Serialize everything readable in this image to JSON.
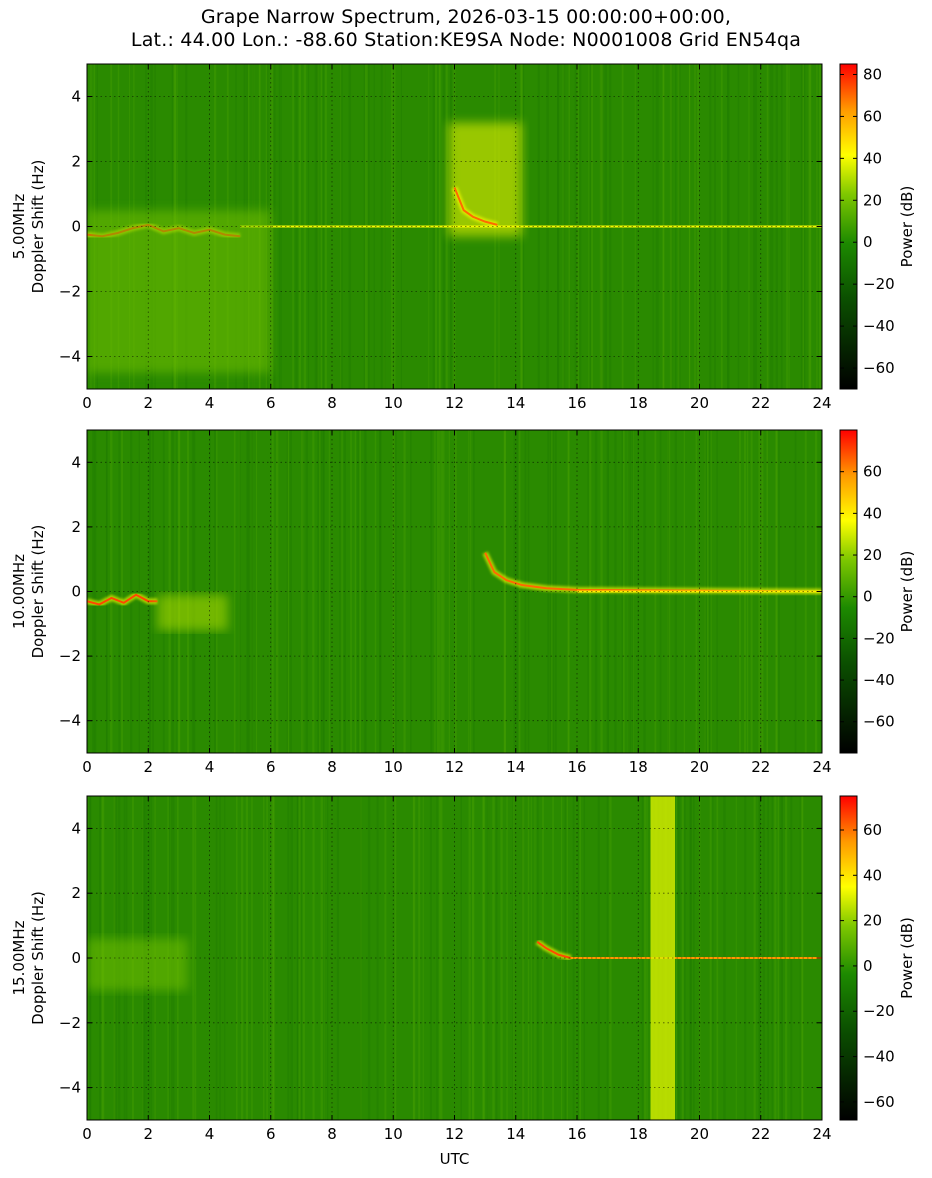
{
  "title": {
    "line1": "Grape Narrow Spectrum, 2026-03-15 00:00:00+00:00,",
    "line2": "Lat.: 44.00 Lon.: -88.60 Station:KE9SA Node: N0001008 Grid EN54qa"
  },
  "chart_data": [
    {
      "type": "heatmap",
      "frequency_label": "5.00MHz",
      "ylabel": "Doppler Shift (Hz)",
      "xlabel": "",
      "xlim": [
        0,
        24
      ],
      "ylim": [
        -5,
        5
      ],
      "x_ticks": [
        0,
        2,
        4,
        6,
        8,
        10,
        12,
        14,
        16,
        18,
        20,
        22,
        24
      ],
      "y_ticks": [
        4,
        2,
        0,
        -2,
        -4
      ],
      "grid": true,
      "colorbar": {
        "label": "Power (dB)",
        "ticks": [
          80,
          60,
          40,
          20,
          0,
          -20,
          -40,
          -60
        ],
        "range": [
          -70,
          85
        ]
      },
      "features": [
        {
          "kind": "carrier",
          "x": [
            0,
            0.5,
            1.0,
            1.5,
            2.0,
            2.5,
            3.0,
            3.5,
            4.0,
            4.5,
            5.0
          ],
          "y": [
            -0.25,
            -0.3,
            -0.2,
            -0.05,
            0.05,
            -0.15,
            -0.05,
            -0.2,
            -0.1,
            -0.25,
            -0.3
          ],
          "power_db": 75
        },
        {
          "kind": "carrier",
          "x": [
            5,
            24
          ],
          "y": [
            0,
            0
          ],
          "power_db": 40
        },
        {
          "kind": "spread",
          "x": [
            0,
            6
          ],
          "y": [
            -4.5,
            0.5
          ],
          "power_db": 20
        },
        {
          "kind": "spread",
          "x": [
            11.8,
            14.2
          ],
          "y": [
            -0.3,
            3.2
          ],
          "power_db": 40
        },
        {
          "kind": "carrier",
          "x": [
            12.0,
            12.3,
            12.6,
            13.0,
            13.4
          ],
          "y": [
            1.2,
            0.5,
            0.3,
            0.15,
            0.05
          ],
          "power_db": 70
        }
      ]
    },
    {
      "type": "heatmap",
      "frequency_label": "10.00MHz",
      "ylabel": "Doppler Shift (Hz)",
      "xlabel": "",
      "xlim": [
        0,
        24
      ],
      "ylim": [
        -5,
        5
      ],
      "x_ticks": [
        0,
        2,
        4,
        6,
        8,
        10,
        12,
        14,
        16,
        18,
        20,
        22,
        24
      ],
      "y_ticks": [
        4,
        2,
        0,
        -2,
        -4
      ],
      "grid": true,
      "colorbar": {
        "label": "Power (dB)",
        "ticks": [
          60,
          40,
          20,
          0,
          -20,
          -40,
          -60
        ],
        "range": [
          -75,
          80
        ]
      },
      "features": [
        {
          "kind": "carrier",
          "x": [
            0,
            0.4,
            0.8,
            1.2,
            1.6,
            2.0,
            2.3
          ],
          "y": [
            -0.3,
            -0.4,
            -0.2,
            -0.35,
            -0.1,
            -0.3,
            -0.3
          ],
          "power_db": 70
        },
        {
          "kind": "spread",
          "x": [
            2.3,
            4.6
          ],
          "y": [
            -1.2,
            -0.1
          ],
          "power_db": 25
        },
        {
          "kind": "carrier",
          "x": [
            13.0,
            13.3,
            13.7,
            14.2,
            15.0,
            16.0,
            24.0
          ],
          "y": [
            1.2,
            0.6,
            0.35,
            0.2,
            0.1,
            0.05,
            0.0
          ],
          "power_db": 65
        },
        {
          "kind": "carrier",
          "x": [
            16,
            24
          ],
          "y": [
            0,
            0
          ],
          "power_db": 40
        }
      ]
    },
    {
      "type": "heatmap",
      "frequency_label": "15.00MHz",
      "ylabel": "Doppler Shift (Hz)",
      "xlabel": "UTC",
      "xlim": [
        0,
        24
      ],
      "ylim": [
        -5,
        5
      ],
      "x_ticks": [
        0,
        2,
        4,
        6,
        8,
        10,
        12,
        14,
        16,
        18,
        20,
        22,
        24
      ],
      "y_ticks": [
        4,
        2,
        0,
        -2,
        -4
      ],
      "grid": true,
      "colorbar": {
        "label": "Power (dB)",
        "ticks": [
          60,
          40,
          20,
          0,
          -20,
          -40,
          -60
        ],
        "range": [
          -68,
          75
        ]
      },
      "features": [
        {
          "kind": "spread",
          "x": [
            0,
            3.3
          ],
          "y": [
            -1.0,
            0.6
          ],
          "power_db": 15
        },
        {
          "kind": "carrier",
          "x": [
            14.7,
            15.0,
            15.4,
            15.8
          ],
          "y": [
            0.5,
            0.3,
            0.1,
            0.0
          ],
          "power_db": 65
        },
        {
          "kind": "carrier",
          "x": [
            15.8,
            24.0
          ],
          "y": [
            0.0,
            0.0
          ],
          "power_db": 55
        },
        {
          "kind": "band",
          "x": [
            18.4,
            19.2
          ],
          "y": [
            -5,
            5
          ],
          "power_db": 30
        }
      ]
    }
  ]
}
